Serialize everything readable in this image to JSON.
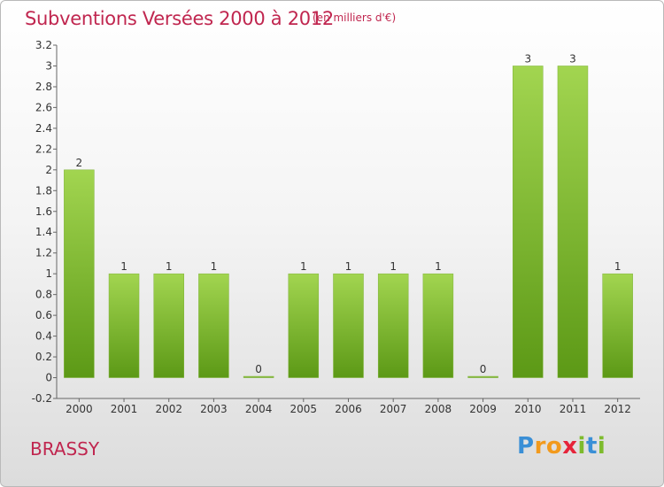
{
  "title": "Subventions Versées 2000 à 2012",
  "unit_note": "(en milliers d'€)",
  "commune": "BRASSY",
  "logo": {
    "p": "P",
    "r": "r",
    "o": "o",
    "x": "x",
    "i1": "i",
    "t": "t",
    "i2": "i"
  },
  "colors": {
    "title": "#c0264f",
    "bar_light": "#9ed24b",
    "bar_dark": "#5f9a17",
    "axis": "#555555"
  },
  "chart_data": {
    "type": "bar",
    "title": "Subventions Versées 2000 à 2012",
    "subtitle": "(en milliers d'€)",
    "xlabel": "",
    "ylabel": "",
    "categories": [
      "2000",
      "2001",
      "2002",
      "2003",
      "2004",
      "2005",
      "2006",
      "2007",
      "2008",
      "2009",
      "2010",
      "2011",
      "2012"
    ],
    "values": [
      2,
      1,
      1,
      1,
      0,
      1,
      1,
      1,
      1,
      0,
      3,
      3,
      1
    ],
    "data_labels": [
      "2",
      "1",
      "1",
      "1",
      "0",
      "1",
      "1",
      "1",
      "1",
      "0",
      "3",
      "3",
      "1"
    ],
    "ylim": [
      -0.2,
      3.2
    ],
    "yticks": [
      -0.2,
      0,
      0.2,
      0.4,
      0.6,
      0.8,
      1,
      1.2,
      1.4,
      1.6,
      1.8,
      2,
      2.2,
      2.4,
      2.6,
      2.8,
      3,
      3.2
    ],
    "ytick_labels": [
      "-0.2",
      "0",
      "0.2",
      "0.4",
      "0.6",
      "0.8",
      "1",
      "1.2",
      "1.4",
      "1.6",
      "1.8",
      "2",
      "2.2",
      "2.4",
      "2.6",
      "2.8",
      "3",
      "3.2"
    ],
    "grid": false,
    "legend": "none"
  }
}
